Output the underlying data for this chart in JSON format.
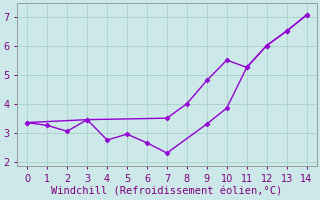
{
  "line_a_x": [
    0,
    3,
    7,
    8,
    9,
    10,
    11,
    12,
    13,
    14
  ],
  "line_a_y": [
    3.35,
    3.45,
    3.5,
    4.0,
    4.8,
    5.5,
    5.25,
    6.0,
    6.5,
    7.05
  ],
  "line_b_x": [
    0,
    1,
    2,
    3,
    4,
    5,
    6,
    7,
    9,
    10,
    11,
    12,
    13,
    14
  ],
  "line_b_y": [
    3.35,
    3.25,
    3.05,
    3.45,
    2.75,
    2.95,
    2.65,
    2.3,
    3.3,
    3.85,
    5.25,
    6.0,
    6.5,
    7.05
  ],
  "line_color": "#9400D3",
  "bg_color": "#cce8e8",
  "grid_color": "#b0d4cc",
  "xlabel": "Windchill (Refroidissement éolien,°C)",
  "xlim": [
    -0.5,
    14.5
  ],
  "ylim": [
    1.85,
    7.45
  ],
  "xticks": [
    0,
    1,
    2,
    3,
    4,
    5,
    6,
    7,
    8,
    9,
    10,
    11,
    12,
    13,
    14
  ],
  "yticks": [
    2,
    3,
    4,
    5,
    6,
    7
  ],
  "marker": "D",
  "marker_size": 2.5,
  "line_width": 1.0,
  "xlabel_fontsize": 7.5,
  "tick_fontsize": 7
}
